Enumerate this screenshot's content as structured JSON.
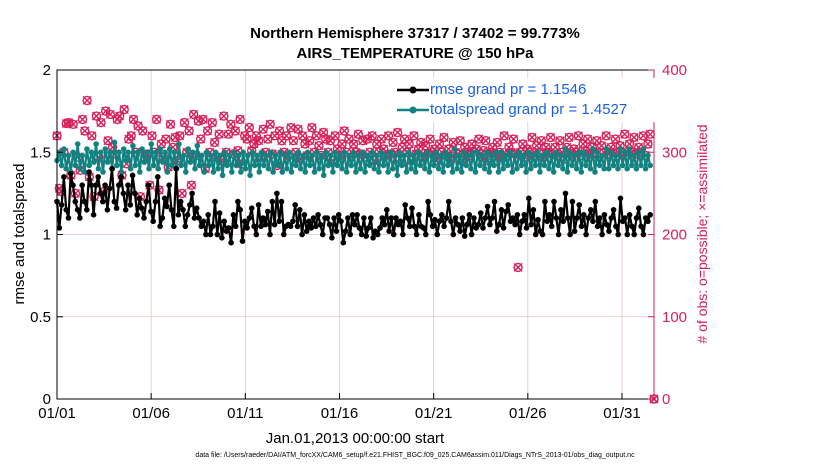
{
  "title": {
    "line1": "Northern Hemisphere 37317 / 37402 = 99.773%",
    "line2": "AIRS_TEMPERATURE @ 150 hPa"
  },
  "footer": "data file: /Users/raeder/DAI/ATM_forcXX/CAM6_setup/f.e21.FHIST_BGC.f09_025.CAM6assim.011/Diags_NTrS_2013-01/obs_diag_output.nc",
  "colors": {
    "rmse": "#000000",
    "spread": "#128281",
    "obs": "#d6215b",
    "legend_text": "#1a5fe0",
    "grid": "#e7c3c3"
  },
  "chart_data": {
    "type": "line",
    "xlabel": "Jan.01,2013 00:00:00 start",
    "ylabel_left": "rmse and totalspread",
    "ylabel_right": "# of obs: o=possible; ×=assimilated",
    "xlim": [
      0,
      31.7
    ],
    "ylim_left": [
      0,
      2
    ],
    "ylim_right": [
      0,
      400
    ],
    "grid": true,
    "x_ticks": [
      0,
      5,
      10,
      15,
      20,
      25,
      30
    ],
    "x_tick_labels": [
      "01/01",
      "01/06",
      "01/11",
      "01/16",
      "01/21",
      "01/26",
      "01/31"
    ],
    "y_ticks_left": [
      0,
      0.5,
      1,
      1.5,
      2
    ],
    "y_tick_labels_left": [
      "0",
      "0.5",
      "1",
      "1.5",
      "2"
    ],
    "y_ticks_right": [
      0,
      100,
      200,
      300,
      400
    ],
    "y_tick_labels_right": [
      "0",
      "100",
      "200",
      "300",
      "400"
    ],
    "legend_position": "top-right",
    "series": [
      {
        "name": "rmse grand pr = 1.1546",
        "axis": "left",
        "marker": "dot",
        "values": [
          1.2,
          1.04,
          1.18,
          1.35,
          1.15,
          1.1,
          1.37,
          1.3,
          1.2,
          1.15,
          1.1,
          1.3,
          1.2,
          1.15,
          1.38,
          1.3,
          1.12,
          1.3,
          1.35,
          1.25,
          1.2,
          1.3,
          1.15,
          1.28,
          1.4,
          1.2,
          1.16,
          1.3,
          1.35,
          1.25,
          1.15,
          1.3,
          1.18,
          1.36,
          1.25,
          1.12,
          1.22,
          1.16,
          1.1,
          1.2,
          1.3,
          1.14,
          1.08,
          1.2,
          1.35,
          1.05,
          1.1,
          1.22,
          1.17,
          1.3,
          1.15,
          1.05,
          1.4,
          1.12,
          1.2,
          1.15,
          1.05,
          1.12,
          1.18,
          1.25,
          1.1,
          1.16,
          1.1,
          1.05,
          1.08,
          1.0,
          1.12,
          1.0,
          1.05,
          1.2,
          1.0,
          1.13,
          0.98,
          1.08,
          1.02,
          1.04,
          0.95,
          1.12,
          1.05,
          1.2,
          1.15,
          0.96,
          1.08,
          1.04,
          1.1,
          1.16,
          1.05,
          1.0,
          1.18,
          1.05,
          1.1,
          1.06,
          1.14,
          1.0,
          1.2,
          1.06,
          1.25,
          1.08,
          1.2,
          1.0,
          1.05,
          1.06,
          1.05,
          1.08,
          1.18,
          1.05,
          1.15,
          1.0,
          1.12,
          1.02,
          1.08,
          1.04,
          1.1,
          1.05,
          1.12,
          1.06,
          1.0,
          1.1,
          1.1,
          1.06,
          0.98,
          1.1,
          1.02,
          1.12,
          1.08,
          0.95,
          1.02,
          1.1,
          1.0,
          1.12,
          1.06,
          1.12,
          1.04,
          1.0,
          1.1,
          0.99,
          1.04,
          1.1,
          0.98,
          1.02,
          1.0,
          1.04,
          1.1,
          1.06,
          1.15,
          1.02,
          1.1,
          1.0,
          1.1,
          1.06,
          1.08,
          1.0,
          1.18,
          1.1,
          1.05,
          1.16,
          1.05,
          1.0,
          1.12,
          1.05,
          1.04,
          1.0,
          1.2,
          1.12,
          1.05,
          1.09,
          1.0,
          1.08,
          1.12,
          1.05,
          1.1,
          1.2,
          1.08,
          1.0,
          1.1,
          1.06,
          1.02,
          1.1,
          0.99,
          1.06,
          1.12,
          1.0,
          1.1,
          1.04,
          1.06,
          1.13,
          1.04,
          1.1,
          1.17,
          1.06,
          1.1,
          1.2,
          1.02,
          1.06,
          1.15,
          1.04,
          1.14,
          1.18,
          1.08,
          1.1,
          1.06,
          1.12,
          1.0,
          1.08,
          1.12,
          1.04,
          1.22,
          1.06,
          1.15,
          1.0,
          1.09,
          1.02,
          1.0,
          1.2,
          1.08,
          1.12,
          1.05,
          1.2,
          1.1,
          1.0,
          1.15,
          1.08,
          1.25,
          1.1,
          1.0,
          1.2,
          1.02,
          1.1,
          1.18,
          1.05,
          1.12,
          1.0,
          1.1,
          1.15,
          1.08,
          1.2,
          1.05,
          1.1,
          1.0,
          1.12,
          1.06,
          1.02,
          1.1,
          1.15,
          1.05,
          1.0,
          1.22,
          1.08,
          1.1,
          1.0,
          1.12,
          1.05,
          1.0,
          1.1,
          1.16,
          1.05,
          1.0,
          1.1,
          1.08,
          1.12
        ]
      },
      {
        "name": "totalspread grand pr = 1.4527",
        "axis": "left",
        "marker": "dot",
        "values": [
          1.45,
          1.5,
          1.42,
          1.52,
          1.4,
          1.48,
          1.38,
          1.5,
          1.42,
          1.55,
          1.4,
          1.48,
          1.38,
          1.52,
          1.42,
          1.5,
          1.44,
          1.55,
          1.4,
          1.5,
          1.38,
          1.52,
          1.44,
          1.5,
          1.4,
          1.56,
          1.42,
          1.5,
          1.38,
          1.52,
          1.45,
          1.5,
          1.4,
          1.54,
          1.42,
          1.5,
          1.38,
          1.52,
          1.44,
          1.5,
          1.4,
          1.55,
          1.42,
          1.5,
          1.4,
          1.52,
          1.44,
          1.5,
          1.38,
          1.52,
          1.42,
          1.5,
          1.4,
          1.55,
          1.42,
          1.48,
          1.38,
          1.52,
          1.44,
          1.5,
          1.4,
          1.54,
          1.42,
          1.48,
          1.38,
          1.5,
          1.42,
          1.48,
          1.38,
          1.5,
          1.4,
          1.48,
          1.36,
          1.5,
          1.42,
          1.48,
          1.38,
          1.5,
          1.42,
          1.48,
          1.38,
          1.5,
          1.4,
          1.48,
          1.36,
          1.5,
          1.42,
          1.48,
          1.38,
          1.5,
          1.42,
          1.48,
          1.4,
          1.5,
          1.38,
          1.48,
          1.42,
          1.5,
          1.38,
          1.48,
          1.4,
          1.5,
          1.38,
          1.48,
          1.42,
          1.5,
          1.4,
          1.48,
          1.38,
          1.5,
          1.42,
          1.48,
          1.38,
          1.5,
          1.4,
          1.48,
          1.36,
          1.5,
          1.42,
          1.48,
          1.38,
          1.5,
          1.42,
          1.48,
          1.4,
          1.5,
          1.38,
          1.48,
          1.42,
          1.5,
          1.38,
          1.48,
          1.4,
          1.5,
          1.38,
          1.48,
          1.42,
          1.5,
          1.4,
          1.48,
          1.38,
          1.5,
          1.42,
          1.48,
          1.38,
          1.5,
          1.4,
          1.48,
          1.36,
          1.5,
          1.42,
          1.48,
          1.38,
          1.5,
          1.4,
          1.48,
          1.38,
          1.5,
          1.42,
          1.48,
          1.4,
          1.5,
          1.38,
          1.48,
          1.42,
          1.5,
          1.4,
          1.48,
          1.38,
          1.5,
          1.42,
          1.48,
          1.38,
          1.52,
          1.4,
          1.48,
          1.38,
          1.5,
          1.42,
          1.48,
          1.4,
          1.5,
          1.38,
          1.5,
          1.42,
          1.48,
          1.4,
          1.5,
          1.38,
          1.48,
          1.42,
          1.5,
          1.38,
          1.5,
          1.4,
          1.48,
          1.42,
          1.5,
          1.38,
          1.48,
          1.4,
          1.5,
          1.42,
          1.48,
          1.38,
          1.5,
          1.4,
          1.48,
          1.42,
          1.5,
          1.38,
          1.48,
          1.42,
          1.5,
          1.4,
          1.48,
          1.38,
          1.5,
          1.42,
          1.48,
          1.4,
          1.52,
          1.38,
          1.5,
          1.42,
          1.48,
          1.4,
          1.5,
          1.38,
          1.5,
          1.42,
          1.48,
          1.4,
          1.52,
          1.38,
          1.5,
          1.42,
          1.48,
          1.4,
          1.52,
          1.4,
          1.5,
          1.42,
          1.48,
          1.4,
          1.52,
          1.42,
          1.5,
          1.4,
          1.52,
          1.42,
          1.48,
          1.4,
          1.5,
          1.42,
          1.52,
          1.4,
          1.48,
          1.42
        ]
      },
      {
        "name": "# of obs",
        "axis": "right",
        "marker": "asterisk",
        "values": [
          320,
          256,
          252,
          300,
          335,
          336,
          272,
          334,
          250,
          294,
          278,
          340,
          326,
          363,
          270,
          320,
          246,
          344,
          294,
          336,
          252,
          350,
          314,
          346,
          306,
          298,
          340,
          344,
          272,
          352,
          286,
          316,
          320,
          340,
          300,
          332,
          246,
          326,
          292,
          298,
          260,
          320,
          300,
          340,
          254,
          310,
          294,
          316,
          282,
          334,
          306,
          318,
          290,
          320,
          250,
          336,
          300,
          326,
          260,
          346,
          296,
          338,
          316,
          340,
          280,
          326,
          300,
          336,
          312,
          294,
          322,
          290,
          344,
          300,
          322,
          334,
          298,
          326,
          302,
          340,
          286,
          320,
          316,
          330,
          302,
          310,
          320,
          314,
          294,
          328,
          300,
          316,
          334,
          298,
          320,
          284,
          326,
          314,
          300,
          320,
          296,
          330,
          314,
          300,
          328,
          292,
          320,
          310,
          296,
          314,
          330,
          300,
          320,
          308,
          296,
          324,
          316,
          300,
          314,
          290,
          320,
          304,
          296,
          310,
          326,
          300,
          316,
          294,
          310,
          300,
          322,
          298,
          314,
          294,
          316,
          300,
          320,
          290,
          310,
          300,
          316,
          304,
          296,
          320,
          298,
          312,
          300,
          324,
          292,
          306,
          316,
          300,
          310,
          290,
          320,
          298,
          304,
          312,
          294,
          308,
          298,
          316,
          300,
          304,
          290,
          310,
          300,
          318,
          296,
          304,
          292,
          312,
          300,
          298,
          314,
          290,
          306,
          300,
          296,
          310,
          300,
          304,
          316,
          298,
          302,
          314,
          290,
          300,
          306,
          296,
          312,
          300,
          294,
          320,
          296,
          306,
          300,
          316,
          298,
          160,
          300,
          310,
          294,
          304,
          300,
          318,
          296,
          308,
          300,
          314,
          294,
          306,
          300,
          318,
          298,
          306,
          296,
          314,
          300,
          292,
          306,
          318,
          298,
          304,
          300,
          320,
          296,
          310,
          302,
          316,
          298,
          306,
          300,
          314,
          294,
          308,
          300,
          320,
          298,
          306,
          300,
          316,
          296,
          308,
          300,
          322,
          296,
          310,
          300,
          318,
          298,
          306,
          300,
          320,
          296,
          310,
          322
        ]
      }
    ]
  }
}
